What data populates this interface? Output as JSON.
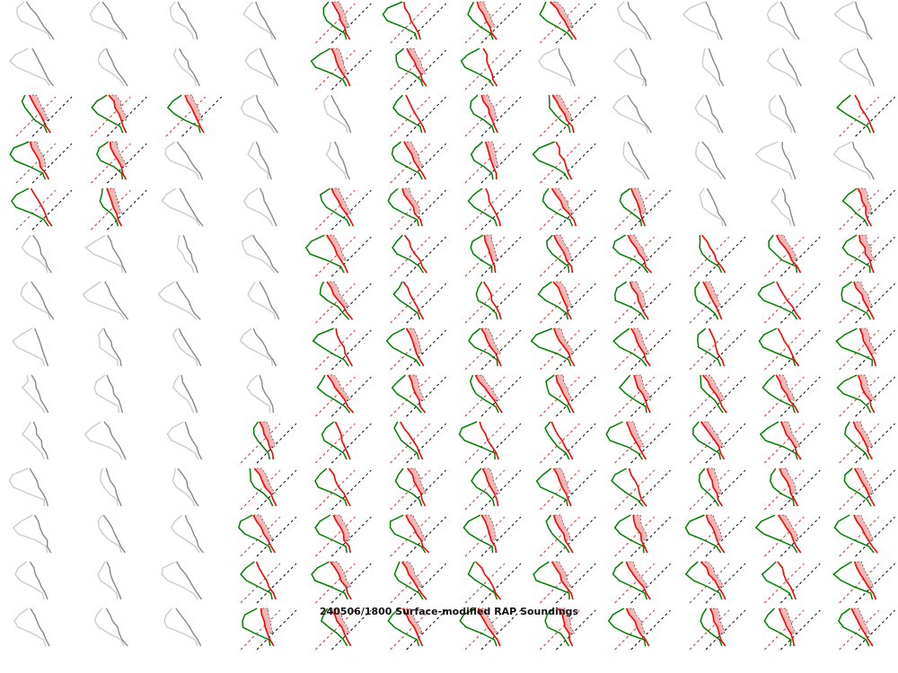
{
  "chart_data": {
    "type": "small-multiples-soundings",
    "title": "240506/1800 Surface-modified RAP Soundings",
    "rows": 14,
    "cols": 12,
    "cell_status_legend": {
      "1": "active (colored sounding)",
      "0": "inactive (gray sounding)"
    },
    "cell_status": [
      [
        0,
        0,
        0,
        0,
        1,
        1,
        1,
        1,
        0,
        0,
        0,
        0
      ],
      [
        0,
        0,
        0,
        0,
        1,
        1,
        1,
        0,
        0,
        0,
        0,
        0
      ],
      [
        1,
        1,
        1,
        0,
        0,
        1,
        1,
        1,
        0,
        0,
        0,
        1
      ],
      [
        1,
        1,
        0,
        0,
        0,
        1,
        1,
        1,
        0,
        0,
        0,
        0
      ],
      [
        1,
        1,
        0,
        0,
        1,
        1,
        1,
        1,
        1,
        0,
        0,
        1
      ],
      [
        0,
        0,
        0,
        0,
        1,
        1,
        1,
        1,
        1,
        1,
        1,
        1
      ],
      [
        0,
        0,
        0,
        0,
        1,
        1,
        1,
        1,
        1,
        1,
        1,
        1
      ],
      [
        0,
        0,
        0,
        0,
        1,
        1,
        1,
        1,
        1,
        1,
        1,
        1
      ],
      [
        0,
        0,
        0,
        0,
        1,
        1,
        1,
        1,
        1,
        1,
        1,
        1
      ],
      [
        0,
        0,
        0,
        1,
        1,
        1,
        1,
        1,
        1,
        1,
        1,
        1
      ],
      [
        0,
        0,
        0,
        1,
        1,
        1,
        1,
        1,
        1,
        1,
        1,
        1
      ],
      [
        0,
        0,
        0,
        1,
        1,
        1,
        1,
        1,
        1,
        1,
        1,
        1
      ],
      [
        0,
        0,
        0,
        1,
        1,
        1,
        1,
        1,
        1,
        1,
        1,
        1
      ],
      [
        0,
        0,
        0,
        1,
        1,
        1,
        1,
        1,
        1,
        1,
        1,
        1
      ]
    ],
    "colors": {
      "temperature": "#ff0000",
      "dewpoint": "#008000",
      "cape_fill": "#f4b6b6",
      "isotherm_warm": "#cc3333",
      "isotherm_zero": "#000000",
      "inactive_temperature": "#888888",
      "inactive_dewpoint": "#cccccc"
    }
  }
}
